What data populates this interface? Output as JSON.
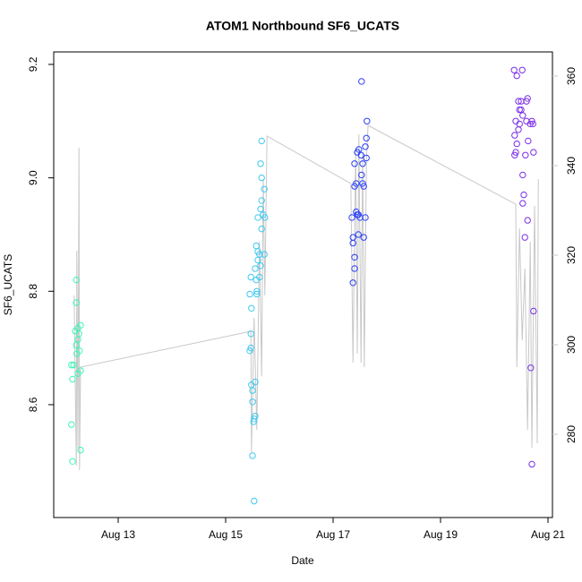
{
  "chart_data": {
    "type": "scatter",
    "title": "ATOM1 Northbound SF6_UCATS",
    "x_label": "Date",
    "y_label": "SF6_UCATS",
    "xlim": [
      11.8,
      21.083
    ],
    "xticks": [
      {
        "value": 13,
        "label": "Aug 13"
      },
      {
        "value": 15,
        "label": "Aug 15"
      },
      {
        "value": 17,
        "label": "Aug 17"
      },
      {
        "value": 19,
        "label": "Aug 19"
      },
      {
        "value": 21,
        "label": "Aug 21"
      }
    ],
    "ylim": [
      8.401,
      9.222
    ],
    "yticks": [
      8.6,
      8.8,
      {
        "value": 9,
        "label": "9.0"
      },
      9.2
    ],
    "y2lim": [
      261.4,
      365.4
    ],
    "y2ticks": [
      280,
      300,
      320,
      340,
      360
    ],
    "y2_color": "#c8c8c8",
    "series": [
      {
        "color": "#3ff5b5",
        "x": [
          12.13,
          12.17,
          12.15,
          12.13,
          12.15,
          12.22,
          12.22,
          12.2,
          12.25,
          12.25,
          12.22,
          12.27,
          12.3,
          12.28,
          12.3,
          12.25,
          12.3,
          12.23
        ],
        "values": [
          8.67,
          8.67,
          8.645,
          8.565,
          8.5,
          8.82,
          8.78,
          8.73,
          8.735,
          8.715,
          8.705,
          8.725,
          8.74,
          8.695,
          8.66,
          8.655,
          8.52,
          8.69
        ]
      },
      {
        "color": "#3fc8f0",
        "x": [
          15.47,
          15.45,
          15.48,
          15.47,
          15.47,
          15.45,
          15.48,
          15.5,
          15.5,
          15.53,
          15.52,
          15.5,
          15.53,
          15.55,
          15.55,
          15.55,
          15.57,
          15.57,
          15.58,
          15.6,
          15.63,
          15.6,
          15.63,
          15.6,
          15.65,
          15.67,
          15.67,
          15.67,
          15.65,
          15.67,
          15.72,
          15.7,
          15.73,
          15.72,
          15.58,
          15.65
        ],
        "values": [
          8.825,
          8.795,
          8.77,
          8.725,
          8.7,
          8.695,
          8.635,
          8.625,
          8.605,
          8.575,
          8.57,
          8.51,
          8.43,
          8.64,
          8.58,
          8.84,
          8.88,
          8.82,
          8.8,
          8.87,
          8.865,
          8.855,
          8.825,
          8.93,
          8.945,
          8.91,
          8.96,
          9.0,
          9.025,
          9.065,
          8.98,
          8.935,
          8.93,
          8.865,
          8.795,
          8.845
        ]
      },
      {
        "color": "#2a3ff5",
        "x": [
          17.35,
          17.37,
          17.37,
          17.4,
          17.4,
          17.37,
          17.4,
          17.4,
          17.45,
          17.43,
          17.43,
          17.45,
          17.47,
          17.5,
          17.47,
          17.48,
          17.52,
          17.55,
          17.53,
          17.57,
          17.55,
          17.57,
          17.6,
          17.62,
          17.6,
          17.62,
          17.63,
          17.53
        ],
        "values": [
          8.93,
          8.895,
          8.885,
          8.86,
          8.84,
          8.815,
          8.985,
          9.025,
          9.045,
          8.99,
          8.94,
          8.935,
          8.935,
          8.93,
          8.9,
          9.05,
          9.04,
          9.025,
          9.005,
          8.985,
          8.99,
          8.895,
          8.93,
          9.035,
          9.055,
          9.07,
          9.1,
          9.17
        ]
      },
      {
        "color": "#7a2ee8",
        "x": [
          20.37,
          20.42,
          20.52,
          20.45,
          20.5,
          20.47,
          20.5,
          20.53,
          20.4,
          20.47,
          20.45,
          20.38,
          20.42,
          20.4,
          20.38,
          20.6,
          20.67,
          20.7,
          20.72,
          20.6,
          20.62,
          20.63,
          20.58,
          20.73,
          20.53,
          20.55,
          20.53,
          20.62,
          20.57,
          20.73,
          20.68,
          20.7
        ],
        "values": [
          9.19,
          9.18,
          9.19,
          9.135,
          9.135,
          9.12,
          9.12,
          9.11,
          9.1,
          9.095,
          9.085,
          9.075,
          9.06,
          9.045,
          9.04,
          9.1,
          9.095,
          9.1,
          9.095,
          9.135,
          9.14,
          9.065,
          9.04,
          9.045,
          9.005,
          8.97,
          8.955,
          8.925,
          8.895,
          8.765,
          8.665,
          8.495
        ]
      },
      {
        "type": "line",
        "axis": "y2",
        "color": "#c8c8c8",
        "x": [
          12.18,
          12.22,
          12.23,
          12.25,
          12.27,
          12.28,
          12.3,
          15.47,
          15.48,
          15.53,
          15.58,
          15.63,
          15.67,
          15.7,
          15.73,
          15.77,
          17.33,
          17.37,
          17.42,
          17.45,
          17.48,
          17.52,
          17.55,
          17.58,
          17.62,
          17.65,
          20.4,
          20.42,
          20.47,
          20.52,
          20.57,
          20.62,
          20.67,
          20.7,
          20.75,
          20.8,
          20.82
        ],
        "values": [
          311,
          273,
          321,
          277,
          344,
          272,
          295,
          303,
          276,
          306,
          281,
          323,
          293,
          337,
          311,
          346.6,
          336,
          296,
          344,
          298,
          347,
          296,
          343,
          295,
          341,
          349,
          331.4,
          295,
          326,
          301,
          317,
          281,
          323,
          277,
          331,
          278,
          337
        ]
      }
    ]
  }
}
